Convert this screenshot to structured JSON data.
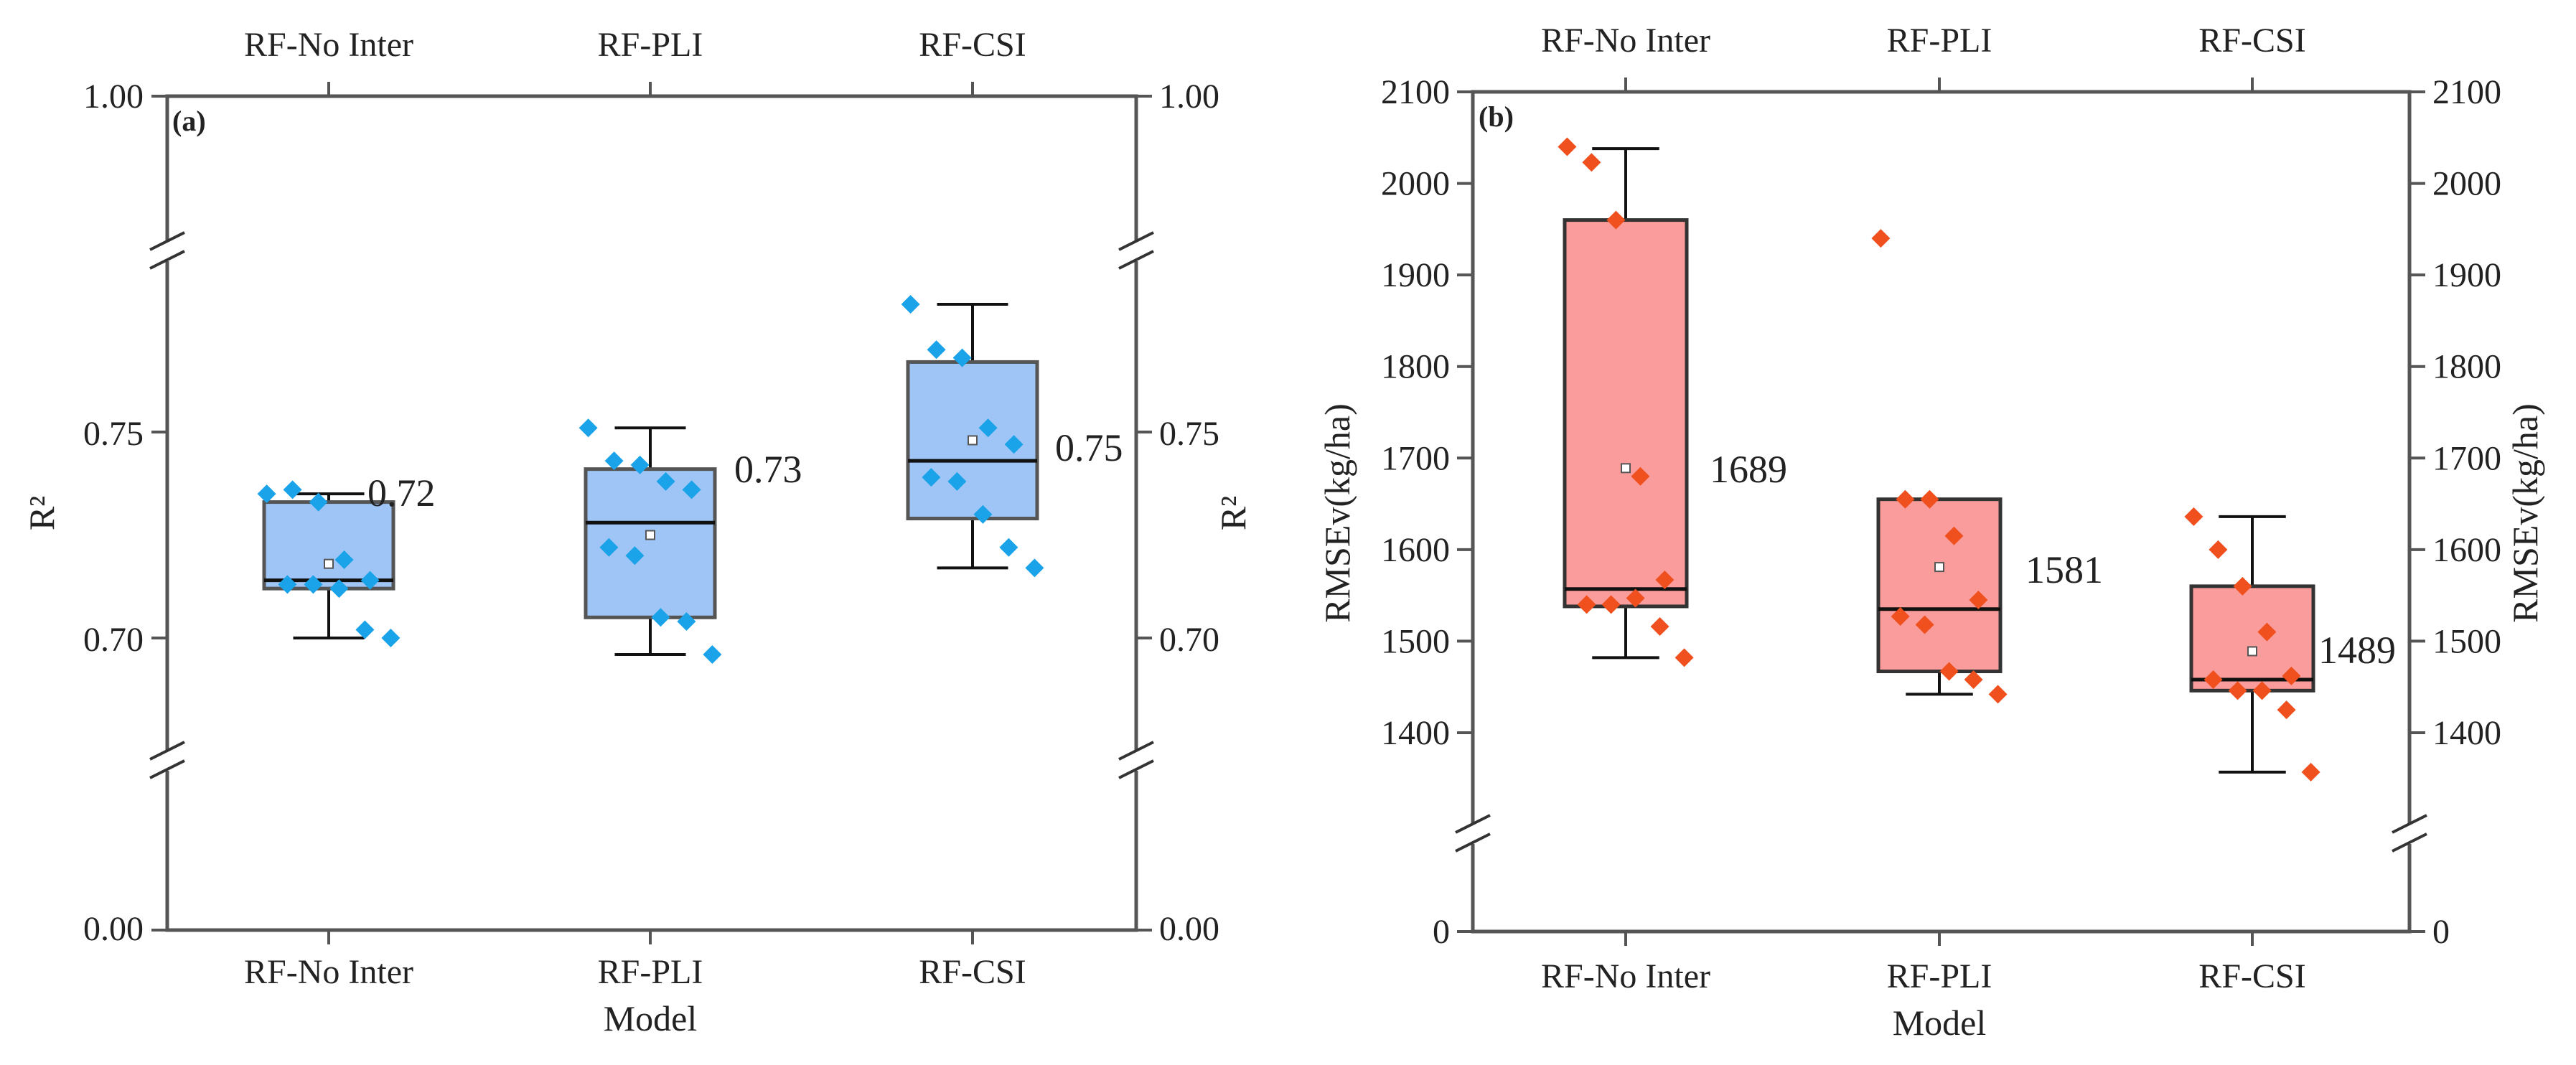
{
  "chart_data": [
    {
      "type": "box",
      "panel_label": "(a)",
      "xlabel": "Model",
      "ylabel_left": "R²",
      "ylabel_right": "R²",
      "categories": [
        "RF-No Inter",
        "RF-PLI",
        "RF-CSI"
      ],
      "top_categories": [
        "RF-No Inter",
        "RF-PLI",
        "RF-CSI"
      ],
      "y_segments": [
        {
          "range": [
            0.0,
            0.0
          ],
          "ticks": [
            0.0
          ],
          "tick_labels": [
            "0.00"
          ]
        },
        {
          "range": [
            0.67,
            0.79
          ],
          "ticks": [
            0.7,
            0.75
          ],
          "tick_labels": [
            "0.70",
            "0.75"
          ]
        },
        {
          "range": [
            1.0,
            1.0
          ],
          "ticks": [
            1.0
          ],
          "tick_labels": [
            "1.00"
          ]
        }
      ],
      "box_color": "#9ec5f5",
      "box_edge": "#555555",
      "point_color": "#1aa3e8",
      "boxes": [
        {
          "name": "RF-No Inter",
          "whisker_low": 0.7,
          "q1": 0.712,
          "median": 0.714,
          "q3": 0.733,
          "whisker_high": 0.735,
          "mean": 0.718,
          "points": [
            0.735,
            0.736,
            0.733,
            0.719,
            0.714,
            0.713,
            0.713,
            0.712,
            0.702,
            0.7
          ]
        },
        {
          "name": "RF-PLI",
          "whisker_low": 0.696,
          "q1": 0.705,
          "median": 0.728,
          "q3": 0.741,
          "whisker_high": 0.751,
          "mean": 0.725,
          "points": [
            0.751,
            0.743,
            0.742,
            0.738,
            0.736,
            0.722,
            0.72,
            0.705,
            0.704,
            0.696
          ]
        },
        {
          "name": "RF-CSI",
          "whisker_low": 0.717,
          "q1": 0.729,
          "median": 0.743,
          "q3": 0.767,
          "whisker_high": 0.781,
          "mean": 0.748,
          "points": [
            0.781,
            0.77,
            0.768,
            0.751,
            0.747,
            0.739,
            0.738,
            0.73,
            0.722,
            0.717
          ]
        }
      ],
      "mean_labels": [
        "0.72",
        "0.73",
        "0.75"
      ]
    },
    {
      "type": "box",
      "panel_label": "(b)",
      "xlabel": "Model",
      "ylabel_left": "RMSEv(kg/ha)",
      "ylabel_right": "RMSEv(kg/ha)",
      "categories": [
        "RF-No Inter",
        "RF-PLI",
        "RF-CSI"
      ],
      "top_categories": [
        "RF-No Inter",
        "RF-PLI",
        "RF-CSI"
      ],
      "y_segments": [
        {
          "range": [
            0,
            0
          ],
          "ticks": [
            0
          ],
          "tick_labels": [
            "0"
          ]
        },
        {
          "range": [
            1270,
            2100
          ],
          "ticks": [
            1400,
            1500,
            1600,
            1700,
            1800,
            1900,
            2000,
            2100
          ],
          "tick_labels": [
            "1400",
            "1500",
            "1600",
            "1700",
            "1800",
            "1900",
            "2000",
            "2100"
          ]
        }
      ],
      "box_color": "#fa9c9c",
      "box_edge": "#333333",
      "point_color": "#f0501e",
      "boxes": [
        {
          "name": "RF-No Inter",
          "whisker_low": 1482,
          "q1": 1538,
          "median": 1557,
          "q3": 1960,
          "whisker_high": 2038,
          "mean": 1689,
          "points": [
            2040,
            2023,
            1960,
            1680,
            1567,
            1540,
            1540,
            1547,
            1516,
            1482
          ]
        },
        {
          "name": "RF-PLI",
          "whisker_low": 1442,
          "q1": 1467,
          "median": 1535,
          "q3": 1655,
          "whisker_high": 1655,
          "mean": 1581,
          "points": [
            1940,
            1655,
            1655,
            1615,
            1545,
            1527,
            1518,
            1467,
            1458,
            1442
          ]
        },
        {
          "name": "RF-CSI",
          "whisker_low": 1357,
          "q1": 1446,
          "median": 1458,
          "q3": 1560,
          "whisker_high": 1636,
          "mean": 1489,
          "points": [
            1636,
            1600,
            1560,
            1510,
            1462,
            1458,
            1446,
            1446,
            1425,
            1357
          ]
        }
      ],
      "mean_labels": [
        "1689",
        "1581",
        "1489"
      ]
    }
  ]
}
